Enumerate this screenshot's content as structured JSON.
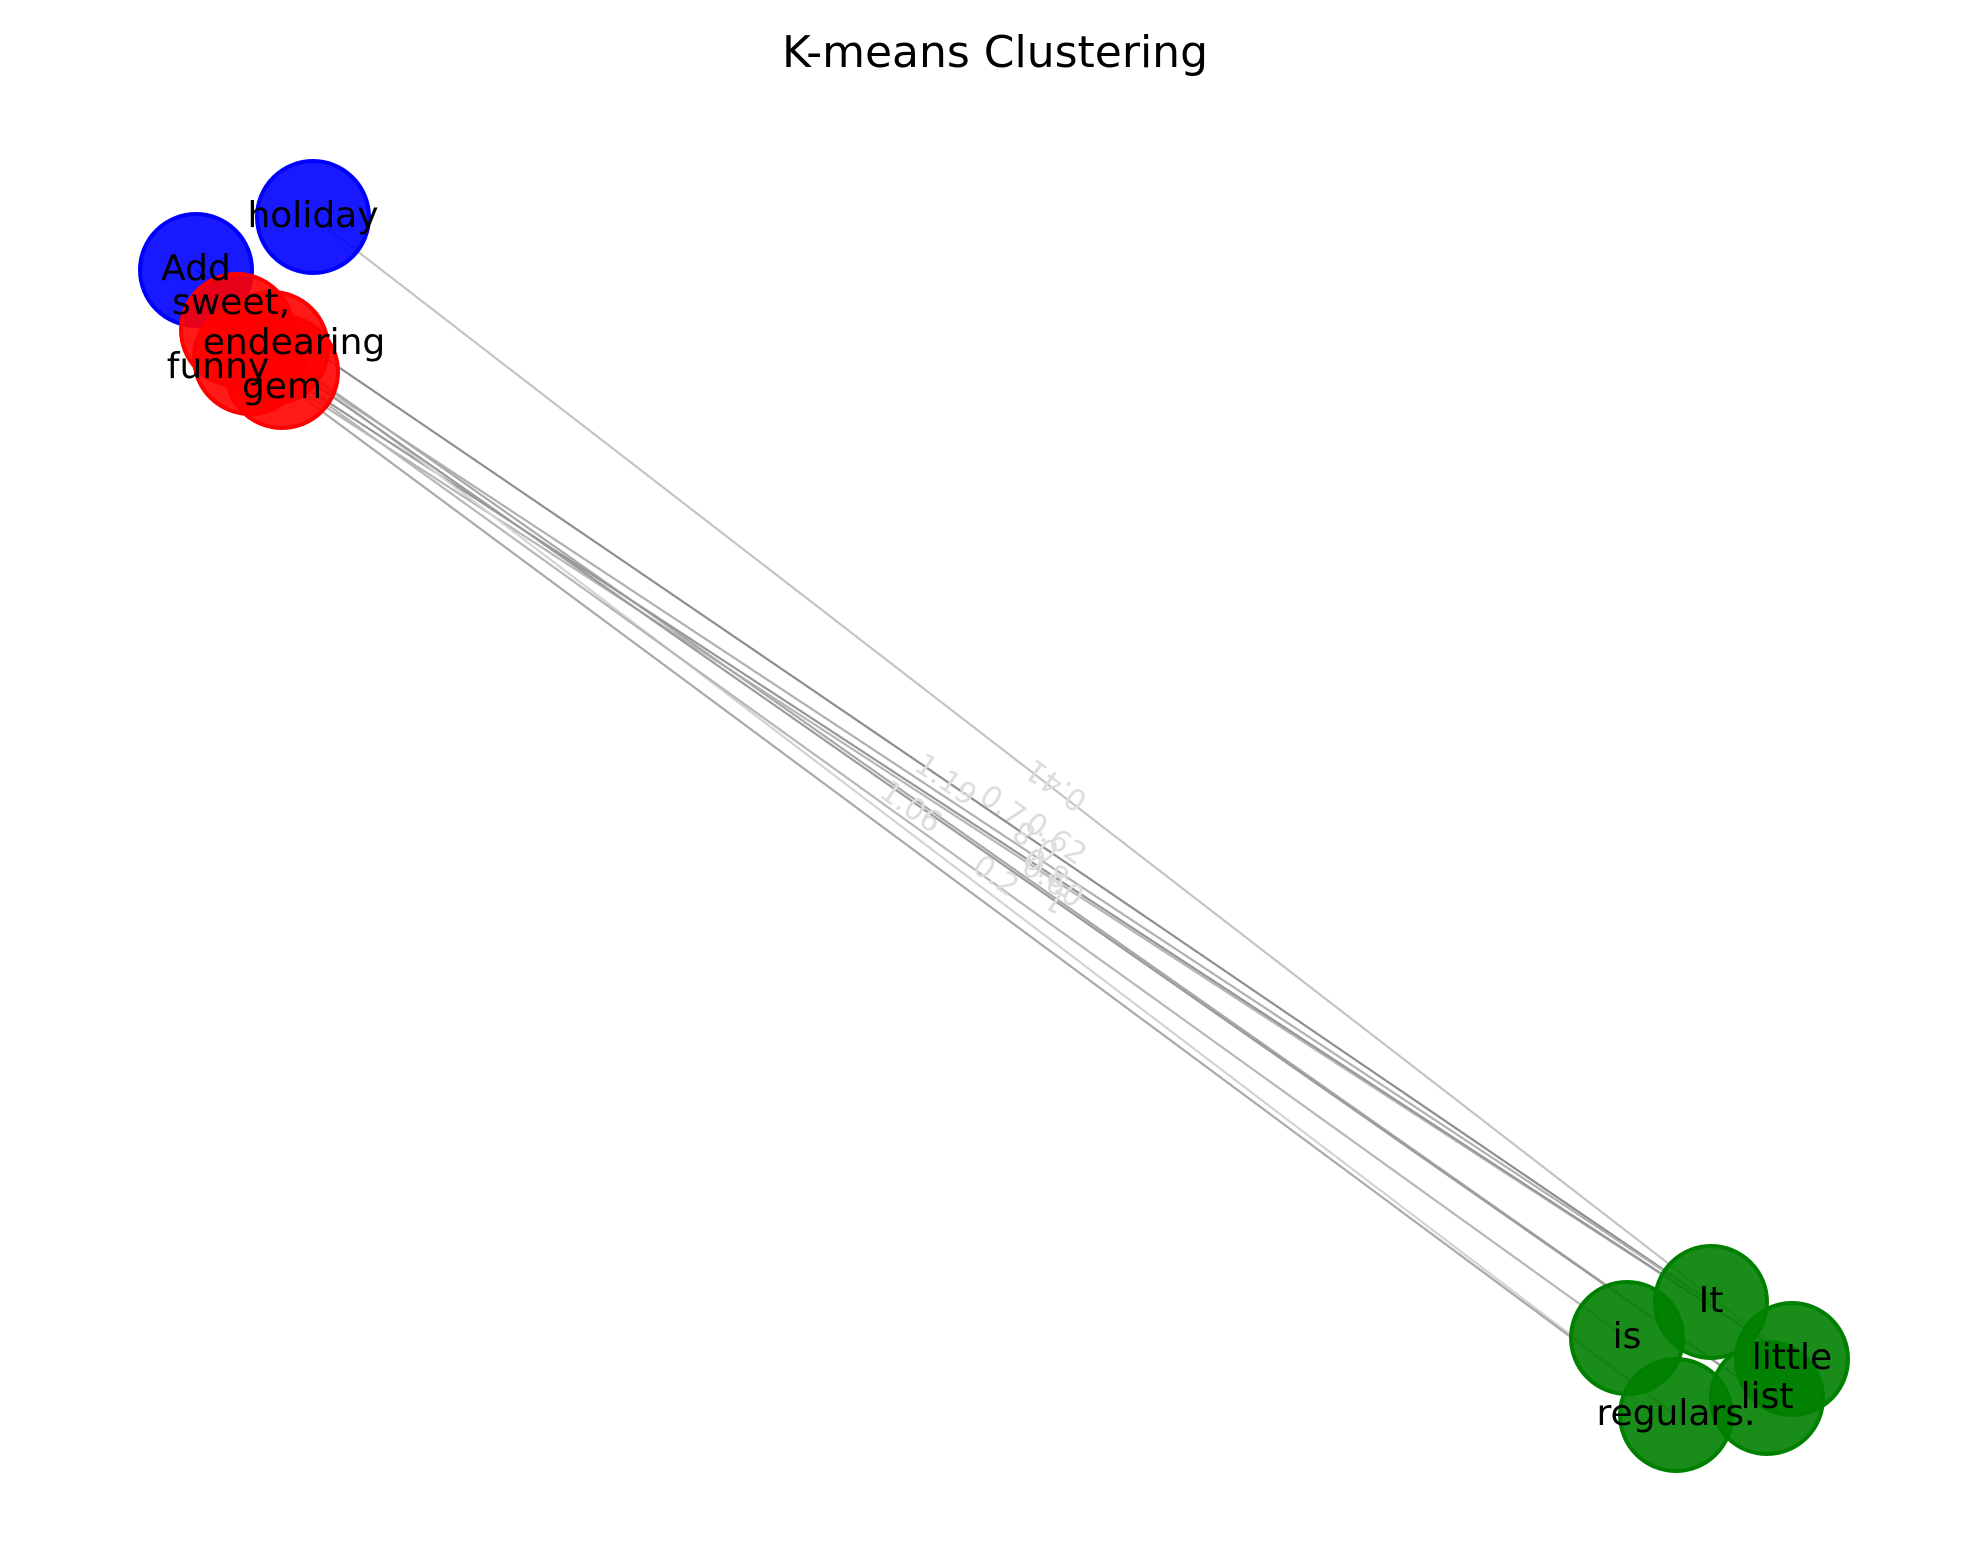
{
  "title": "K-means Clustering",
  "clusters": [
    {
      "id": "blue",
      "color": "#0000ff"
    },
    {
      "id": "red",
      "color": "#ff0000"
    },
    {
      "id": "green",
      "color": "#008000"
    }
  ],
  "nodes": [
    {
      "id": "holiday",
      "label": "holiday",
      "cluster": "blue"
    },
    {
      "id": "add",
      "label": "Add",
      "cluster": "blue"
    },
    {
      "id": "sweet",
      "label": "sweet,",
      "cluster": "red"
    },
    {
      "id": "funny",
      "label": "funny",
      "cluster": "red"
    },
    {
      "id": "endearing",
      "label": "endearing",
      "cluster": "red"
    },
    {
      "id": "gem",
      "label": "gem",
      "cluster": "red"
    },
    {
      "id": "it",
      "label": "It",
      "cluster": "green"
    },
    {
      "id": "is",
      "label": "is",
      "cluster": "green"
    },
    {
      "id": "little",
      "label": "little",
      "cluster": "green"
    },
    {
      "id": "list",
      "label": "list",
      "cluster": "green"
    },
    {
      "id": "regulars",
      "label": "regulars.",
      "cluster": "green"
    }
  ],
  "edges": [
    {
      "source": "holiday",
      "target": "little",
      "weight": "0.41",
      "label": "0.41"
    },
    {
      "source": "add",
      "target": "it",
      "weight": "1.19",
      "label": "1.19"
    },
    {
      "source": "sweet",
      "target": "it",
      "weight": "0.7",
      "label": "0.7"
    },
    {
      "source": "funny",
      "target": "little",
      "weight": "0.62",
      "label": "0.62"
    },
    {
      "source": "endearing",
      "target": "list",
      "weight": "0.8",
      "label": "0.8"
    },
    {
      "source": "gem",
      "target": "little",
      "weight": "1.06",
      "label": "1.06"
    },
    {
      "source": "endearing",
      "target": "regulars",
      "weight": "0.2",
      "label": "0.2"
    },
    {
      "source": "gem",
      "target": "is",
      "weight": "0.60",
      "label": "0.60"
    },
    {
      "source": "funny",
      "target": "regulars",
      "weight": "0.8",
      "label": "0.8"
    },
    {
      "source": "sweet",
      "target": "list",
      "weight": "1",
      "label": "1"
    }
  ]
}
